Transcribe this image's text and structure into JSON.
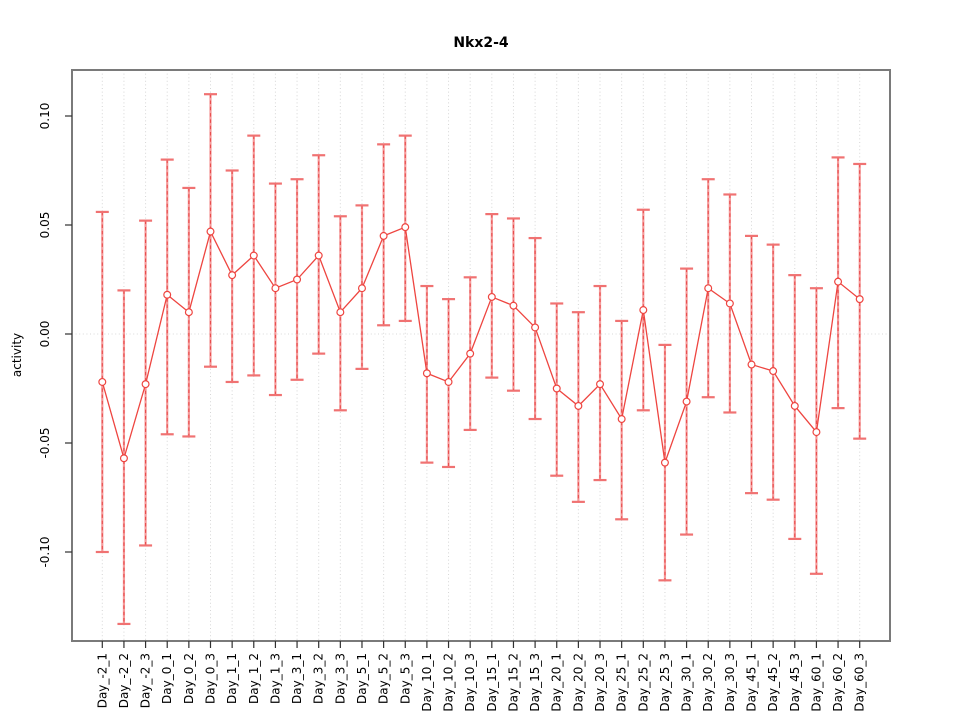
{
  "chart_data": {
    "type": "line",
    "subtype": "points-with-error-bars",
    "title": "Nkx2-4",
    "xlabel": "",
    "ylabel": "activity",
    "legend": "none",
    "grid": "vertical-dotted-per-category-plus-zero-line",
    "ylim": [
      -0.142,
      0.121
    ],
    "yticks": [
      {
        "value": 0.1,
        "label": "0.10"
      },
      {
        "value": 0.05,
        "label": "0.05"
      },
      {
        "value": 0.0,
        "label": "0.00"
      },
      {
        "value": -0.05,
        "label": "-0.05"
      },
      {
        "value": -0.1,
        "label": "-0.10"
      }
    ],
    "categories": [
      "Day_-2_1",
      "Day_-2_2",
      "Day_-2_3",
      "Day_0_1",
      "Day_0_2",
      "Day_0_3",
      "Day_1_1",
      "Day_1_2",
      "Day_1_3",
      "Day_3_1",
      "Day_3_2",
      "Day_3_3",
      "Day_5_1",
      "Day_5_2",
      "Day_5_3",
      "Day_10_1",
      "Day_10_2",
      "Day_10_3",
      "Day_15_1",
      "Day_15_2",
      "Day_15_3",
      "Day_20_1",
      "Day_20_2",
      "Day_20_3",
      "Day_25_1",
      "Day_25_2",
      "Day_25_3",
      "Day_30_1",
      "Day_30_2",
      "Day_30_3",
      "Day_45_1",
      "Day_45_2",
      "Day_45_3",
      "Day_60_1",
      "Day_60_2",
      "Day_60_3"
    ],
    "series": [
      {
        "name": "activity",
        "values": [
          -0.022,
          -0.057,
          -0.023,
          0.018,
          0.01,
          0.047,
          0.027,
          0.036,
          0.021,
          0.025,
          0.036,
          0.01,
          0.021,
          0.045,
          0.049,
          -0.018,
          -0.022,
          -0.009,
          0.017,
          0.013,
          0.003,
          -0.025,
          -0.033,
          -0.023,
          -0.039,
          0.011,
          -0.059,
          -0.031,
          0.021,
          0.014,
          -0.014,
          -0.017,
          -0.033,
          -0.045,
          0.024,
          0.016
        ],
        "upper": [
          0.056,
          0.02,
          0.052,
          0.08,
          0.067,
          0.11,
          0.075,
          0.091,
          0.069,
          0.071,
          0.082,
          0.054,
          0.059,
          0.087,
          0.091,
          0.022,
          0.016,
          0.026,
          0.055,
          0.053,
          0.044,
          0.014,
          0.01,
          0.022,
          0.006,
          0.057,
          -0.005,
          0.03,
          0.071,
          0.064,
          0.045,
          0.041,
          0.027,
          0.021,
          0.081,
          0.078
        ],
        "lower": [
          -0.1,
          -0.133,
          -0.097,
          -0.046,
          -0.047,
          -0.015,
          -0.022,
          -0.019,
          -0.028,
          -0.021,
          -0.009,
          -0.035,
          -0.016,
          0.004,
          0.006,
          -0.059,
          -0.061,
          -0.044,
          -0.02,
          -0.026,
          -0.039,
          -0.065,
          -0.077,
          -0.067,
          -0.085,
          -0.035,
          -0.113,
          -0.092,
          -0.029,
          -0.036,
          -0.073,
          -0.076,
          -0.094,
          -0.11,
          -0.034,
          -0.048
        ]
      }
    ],
    "colors": {
      "series_line": "#ee4540",
      "point_stroke": "#ee4540",
      "whisker_body": "#f59a9a",
      "whisker_dash": "#e84d4d",
      "cap": "#f07272",
      "gridline": "#d6d6d6",
      "zero_line": "#d9d9d9",
      "plot_border": "#7a7a7a",
      "axis_tick": "#303030",
      "text": "#000000"
    }
  }
}
